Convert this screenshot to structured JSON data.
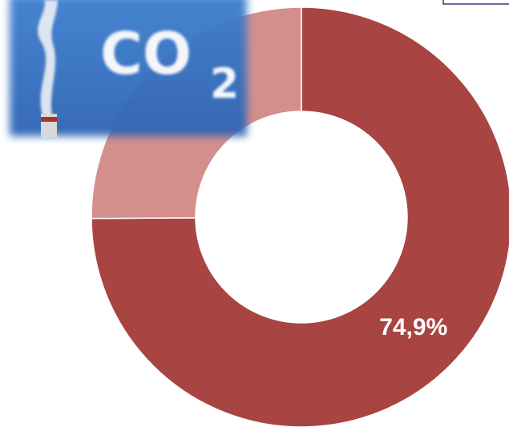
{
  "chart_data": {
    "type": "donut",
    "values": [
      74.9,
      25.1
    ],
    "value_labels": [
      "74,9%",
      null
    ],
    "colors": [
      "#a84442",
      "#d48f8d"
    ],
    "image_text": {
      "main": "CO",
      "subscript": "2"
    }
  }
}
